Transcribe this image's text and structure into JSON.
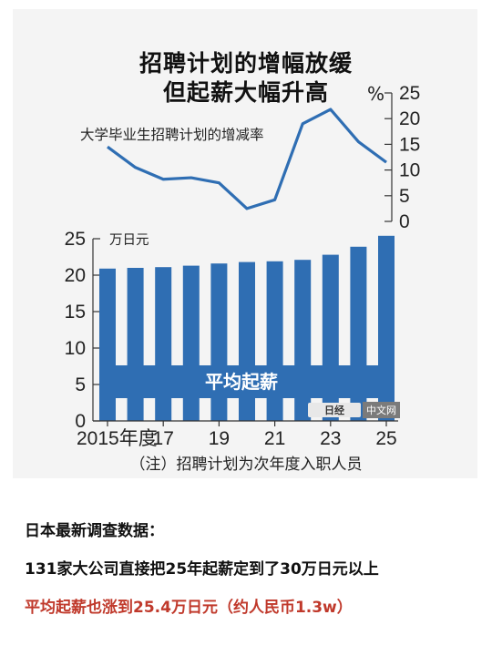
{
  "chart_data": [
    {
      "type": "line",
      "title_lines": [
        "招聘计划的增幅放缓",
        "但起薪大幅升高"
      ],
      "series_label": "大学毕业生招聘计划的增减率",
      "unit": "%",
      "ylim": [
        0,
        25
      ],
      "yticks": [
        0,
        5,
        10,
        15,
        20,
        25
      ],
      "x": [
        2015,
        2016,
        2017,
        2018,
        2019,
        2020,
        2021,
        2022,
        2023,
        2024,
        2025
      ],
      "values": [
        14.5,
        10.5,
        8.2,
        8.5,
        7.5,
        2.5,
        4.2,
        19.0,
        21.8,
        15.5,
        11.5
      ]
    },
    {
      "type": "bar",
      "unit": "万日元",
      "series_label": "平均起薪",
      "ylim": [
        0,
        25
      ],
      "yticks": [
        0,
        5,
        10,
        15,
        20,
        25
      ],
      "x": [
        2015,
        2016,
        2017,
        2018,
        2019,
        2020,
        2021,
        2022,
        2023,
        2024,
        2025
      ],
      "x_tick_labels": [
        "2015年度",
        "17",
        "19",
        "21",
        "23",
        "25"
      ],
      "values": [
        20.9,
        21.0,
        21.1,
        21.3,
        21.6,
        21.8,
        21.9,
        22.1,
        22.8,
        23.9,
        25.4
      ]
    }
  ],
  "caption": "（注）招聘计划为次年度入职人员",
  "watermark": {
    "logo": "日经",
    "text": "中文网"
  },
  "colors": {
    "bar": "#2f6eb3",
    "line": "#2f6eb3",
    "highlight": "#c0392b"
  },
  "text_lines": [
    "日本最新调查数据：",
    "131家大公司直接把25年起薪定到了30万日元以上",
    "平均起薪也涨到25.4万日元（约人民币1.3w）"
  ]
}
